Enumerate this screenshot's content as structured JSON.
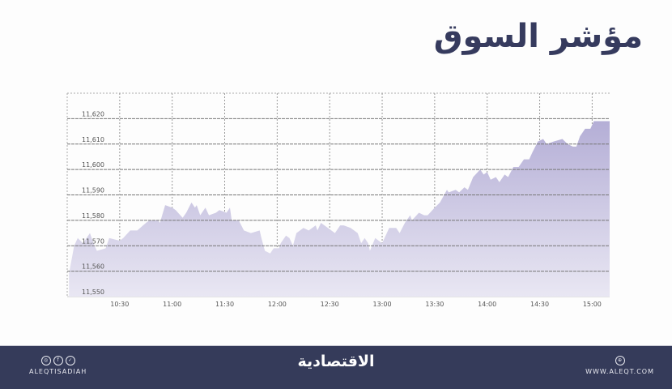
{
  "title": "مؤشر السوق",
  "colors": {
    "title": "#363b5e",
    "footer": "#353b5a",
    "fill_top": "#b4aed6",
    "fill_bottom": "#e9e7f3",
    "grid": "#777777"
  },
  "footer": {
    "social_handle": "ALEQTISADIAH",
    "social_icons": [
      "instagram-icon",
      "facebook-icon",
      "twitter-icon"
    ],
    "logo_text": "الاقتصادية",
    "website": "WWW.ALEQT.COM",
    "web_icon": "globe-icon"
  },
  "chart_data": {
    "type": "area",
    "title": "",
    "xlabel": "",
    "ylabel": "",
    "xlim": [
      "10:00",
      "15:10"
    ],
    "ylim": [
      11550,
      11630
    ],
    "grid": true,
    "x_ticks": [
      "10:30",
      "11:00",
      "11:30",
      "12:00",
      "12:30",
      "13:00",
      "13:30",
      "14:00",
      "14:30",
      "15:00"
    ],
    "y_ticks": [
      "11,550",
      "11,560",
      "11,570",
      "11,580",
      "11,590",
      "11,600",
      "11,610",
      "11,620"
    ],
    "y_tick_values": [
      11550,
      11560,
      11570,
      11580,
      11590,
      11600,
      11610,
      11620
    ],
    "x": [
      "10:01",
      "10:04",
      "10:06",
      "10:09",
      "10:13",
      "10:15",
      "10:17",
      "10:22",
      "10:24",
      "10:30",
      "10:32",
      "10:36",
      "10:40",
      "10:45",
      "10:47",
      "10:52",
      "10:53",
      "10:56",
      "11:00",
      "11:02",
      "11:06",
      "11:08",
      "11:11",
      "11:13",
      "11:14",
      "11:16",
      "11:19",
      "11:21",
      "11:25",
      "11:27",
      "11:31",
      "11:33",
      "11:34",
      "11:38",
      "11:41",
      "11:45",
      "11:50",
      "11:51",
      "11:53",
      "11:56",
      "11:58",
      "12:01",
      "12:02",
      "12:05",
      "12:07",
      "12:09",
      "12:11",
      "12:15",
      "12:18",
      "12:22",
      "12:23",
      "12:25",
      "12:29",
      "12:33",
      "12:36",
      "12:38",
      "12:42",
      "12:46",
      "12:48",
      "12:50",
      "12:52",
      "12:53",
      "12:56",
      "13:00",
      "13:04",
      "13:08",
      "13:10",
      "13:13",
      "13:16",
      "13:17",
      "13:21",
      "13:24",
      "13:26",
      "13:30",
      "13:33",
      "13:37",
      "13:38",
      "13:42",
      "13:44",
      "13:47",
      "13:49",
      "13:52",
      "13:56",
      "13:58",
      "14:00",
      "14:02",
      "14:05",
      "14:07",
      "14:10",
      "14:12",
      "14:15",
      "14:18",
      "14:21",
      "14:24",
      "14:26",
      "14:29",
      "14:32",
      "14:34",
      "14:38",
      "14:43",
      "14:46",
      "14:49",
      "14:51",
      "14:53",
      "14:56",
      "14:59",
      "15:01",
      "15:10"
    ],
    "values": [
      11559,
      11570,
      11573,
      11571,
      11575,
      11571,
      11568,
      11569,
      11573,
      11572,
      11573,
      11576,
      11576,
      11579,
      11580,
      11580,
      11579,
      11586,
      11585,
      11584,
      11581,
      11583,
      11587,
      11585,
      11586,
      11582,
      11585,
      11582,
      11583,
      11584,
      11583,
      11585,
      11580,
      11580,
      11576,
      11575,
      11576,
      11573,
      11568,
      11567,
      11569,
      11569,
      11571,
      11574,
      11573,
      11570,
      11575,
      11577,
      11576,
      11578,
      11576,
      11579,
      11577,
      11575,
      11578,
      11578,
      11577,
      11575,
      11571,
      11573,
      11571,
      11568,
      11573,
      11571,
      11577,
      11577,
      11575,
      11579,
      11582,
      11580,
      11583,
      11582,
      11582,
      11585,
      11587,
      11592,
      11591,
      11592,
      11591,
      11593,
      11592,
      11597,
      11600,
      11598,
      11599,
      11596,
      11597,
      11595,
      11598,
      11597,
      11601,
      11601,
      11604,
      11604,
      11607,
      11611,
      11612,
      11610,
      11611,
      11612,
      11610,
      11609,
      11609,
      11613,
      11616,
      11616,
      11619,
      11619
    ]
  }
}
